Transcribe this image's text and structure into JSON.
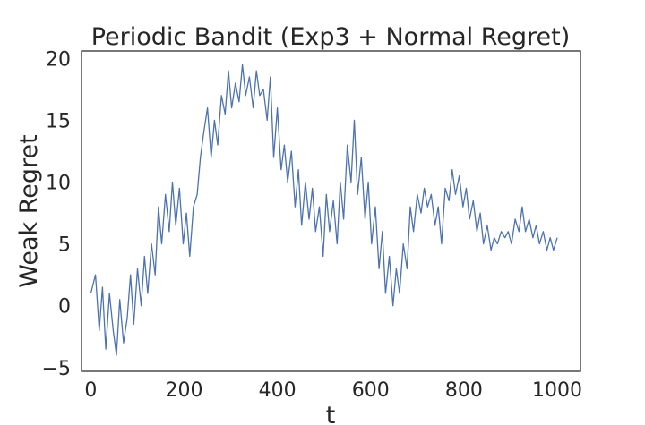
{
  "chart_data": {
    "type": "line",
    "title": "Periodic Bandit (Exp3 + Normal Regret)",
    "xlabel": "t",
    "ylabel": "Weak Regret",
    "xlim": [
      -20,
      1050
    ],
    "ylim": [
      -5.3,
      20.6
    ],
    "xticks": [
      0,
      200,
      400,
      600,
      800,
      1000
    ],
    "yticks": [
      -5,
      0,
      5,
      10,
      15,
      20
    ],
    "xtick_labels": [
      "0",
      "200",
      "400",
      "600",
      "800",
      "1000"
    ],
    "ytick_labels": [
      "−5",
      "0",
      "5",
      "10",
      "15",
      "20"
    ],
    "grid": false,
    "series_color": "#4c72b0",
    "series": [
      {
        "x": [
          0,
          10,
          18,
          25,
          32,
          40,
          48,
          55,
          62,
          70,
          78,
          85,
          92,
          100,
          108,
          115,
          122,
          130,
          138,
          145,
          152,
          160,
          168,
          175,
          182,
          190,
          198,
          205,
          212,
          220,
          228,
          235,
          242,
          250,
          258,
          265,
          272,
          280,
          288,
          295,
          302,
          310,
          318,
          325,
          332,
          340,
          348,
          355,
          362,
          370,
          378,
          385,
          392,
          400,
          408,
          415,
          422,
          430,
          438,
          445,
          452,
          460,
          468,
          475,
          482,
          490,
          498,
          505,
          512,
          520,
          528,
          535,
          542,
          550,
          558,
          565,
          572,
          580,
          588,
          595,
          602,
          610,
          618,
          625,
          632,
          640,
          648,
          655,
          662,
          670,
          678,
          685,
          692,
          700,
          708,
          715,
          722,
          730,
          738,
          745,
          752,
          760,
          768,
          775,
          782,
          790,
          798,
          805,
          812,
          820,
          828,
          835,
          842,
          850,
          858,
          865,
          872,
          880,
          888,
          895,
          902,
          910,
          918,
          925,
          932,
          940,
          948,
          955,
          962,
          970,
          978,
          985,
          992,
          1000
        ],
        "y": [
          1.0,
          2.5,
          -2.0,
          1.5,
          -3.5,
          1.0,
          -2.0,
          -4.0,
          0.5,
          -3.0,
          -1.0,
          2.5,
          -1.5,
          3.0,
          0.0,
          4.0,
          1.0,
          5.0,
          2.5,
          8.0,
          5.0,
          9.0,
          6.0,
          10.0,
          6.5,
          9.5,
          5.0,
          7.5,
          4.0,
          8.0,
          9.0,
          12.0,
          14.0,
          16.0,
          12.0,
          15.0,
          13.0,
          17.0,
          15.5,
          19.0,
          16.0,
          18.0,
          16.5,
          19.5,
          17.0,
          18.5,
          16.0,
          19.0,
          17.0,
          17.5,
          15.0,
          18.5,
          12.0,
          16.0,
          11.0,
          13.0,
          10.0,
          12.5,
          8.0,
          11.0,
          6.5,
          10.0,
          7.0,
          9.5,
          6.0,
          8.0,
          4.0,
          9.0,
          6.0,
          8.5,
          5.0,
          10.0,
          7.0,
          13.0,
          10.0,
          15.0,
          9.0,
          12.0,
          7.0,
          10.0,
          5.0,
          8.0,
          3.0,
          6.0,
          1.0,
          4.0,
          0.0,
          3.0,
          1.0,
          5.0,
          3.0,
          8.0,
          6.0,
          9.0,
          7.5,
          9.5,
          8.0,
          9.0,
          6.5,
          8.0,
          5.0,
          9.5,
          8.5,
          11.0,
          9.0,
          10.5,
          8.0,
          9.5,
          7.0,
          8.5,
          6.0,
          7.5,
          5.0,
          6.5,
          4.5,
          5.5,
          5.0,
          6.0,
          5.5,
          6.0,
          5.0,
          7.0,
          6.0,
          8.0,
          6.0,
          7.0,
          5.5,
          6.5,
          5.0,
          6.0,
          4.5,
          5.5,
          4.5,
          5.5
        ]
      }
    ]
  }
}
